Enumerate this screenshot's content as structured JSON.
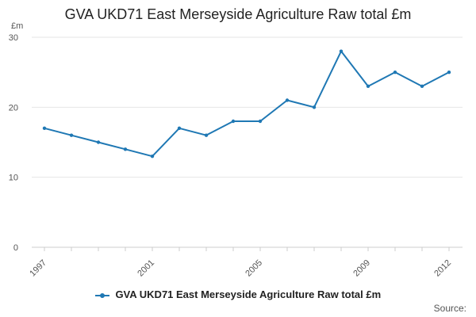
{
  "chart_data": {
    "type": "line",
    "title": "GVA UKD71 East Merseyside Agriculture Raw total £m",
    "ylabel": "£m",
    "xlabel": "",
    "x": [
      "1997",
      "1998",
      "1999",
      "2000",
      "2001",
      "2002",
      "2003",
      "2004",
      "2005",
      "2006",
      "2007",
      "2008",
      "2009",
      "2010",
      "2011",
      "2012"
    ],
    "x_tick_labels": [
      "1997",
      "2001",
      "2005",
      "2009",
      "2012"
    ],
    "y_ticks": [
      0,
      10,
      20,
      30
    ],
    "ylim": [
      0,
      30
    ],
    "grid": true,
    "legend_position": "bottom",
    "series": [
      {
        "name": "GVA UKD71 East Merseyside Agriculture Raw total £m",
        "color": "#1f78b4",
        "values": [
          17,
          16,
          15,
          14,
          13,
          17,
          16,
          18,
          18,
          21,
          20,
          28,
          23,
          25,
          23,
          25
        ]
      }
    ],
    "source_label": "Source:"
  }
}
